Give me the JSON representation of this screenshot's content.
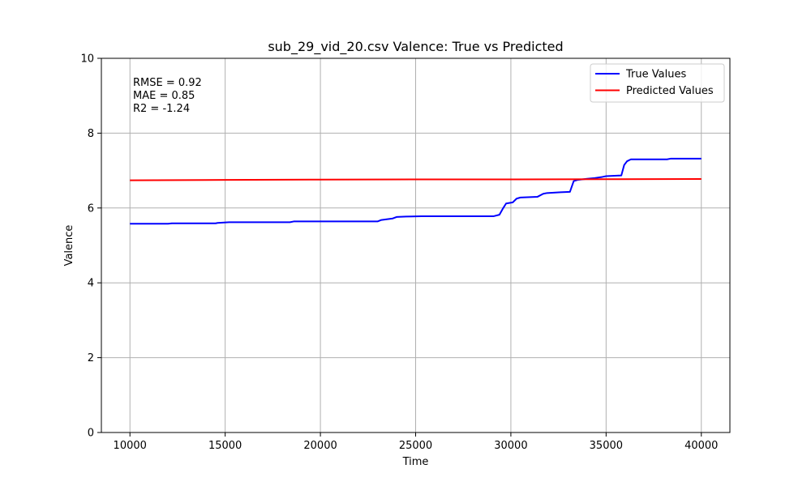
{
  "chart_data": {
    "type": "line",
    "title": "sub_29_vid_20.csv Valence: True vs Predicted",
    "xlabel": "Time",
    "ylabel": "Valence",
    "xlim": [
      8500,
      41500
    ],
    "ylim": [
      0,
      10
    ],
    "xticks": [
      10000,
      15000,
      20000,
      25000,
      30000,
      35000,
      40000
    ],
    "yticks": [
      0,
      2,
      4,
      6,
      8,
      10
    ],
    "grid": true,
    "legend_position": "upper right",
    "annotations": [
      "RMSE = 0.92",
      "MAE = 0.85",
      "R2 = -1.24"
    ],
    "series": [
      {
        "name": "True Values",
        "color": "#0000ff",
        "x": [
          10000,
          12000,
          12200,
          14500,
          14600,
          15200,
          18400,
          18600,
          23000,
          23200,
          23800,
          24000,
          24500,
          25300,
          29100,
          29400,
          29600,
          29750,
          30100,
          30300,
          30500,
          31400,
          31700,
          31900,
          32600,
          33100,
          33300,
          33500,
          34000,
          34400,
          34800,
          35000,
          35800,
          35950,
          36100,
          36300,
          38200,
          38400,
          40000
        ],
        "y": [
          5.58,
          5.58,
          5.59,
          5.59,
          5.6,
          5.62,
          5.62,
          5.64,
          5.64,
          5.68,
          5.72,
          5.76,
          5.77,
          5.78,
          5.78,
          5.82,
          6.0,
          6.12,
          6.15,
          6.25,
          6.28,
          6.3,
          6.38,
          6.4,
          6.42,
          6.43,
          6.72,
          6.75,
          6.78,
          6.8,
          6.83,
          6.85,
          6.87,
          7.15,
          7.25,
          7.3,
          7.3,
          7.32,
          7.32
        ]
      },
      {
        "name": "Predicted Values",
        "color": "#ff0000",
        "x": [
          10000,
          15000,
          20000,
          25000,
          30000,
          35000,
          40000
        ],
        "y": [
          6.74,
          6.75,
          6.76,
          6.765,
          6.765,
          6.77,
          6.775
        ]
      }
    ]
  }
}
